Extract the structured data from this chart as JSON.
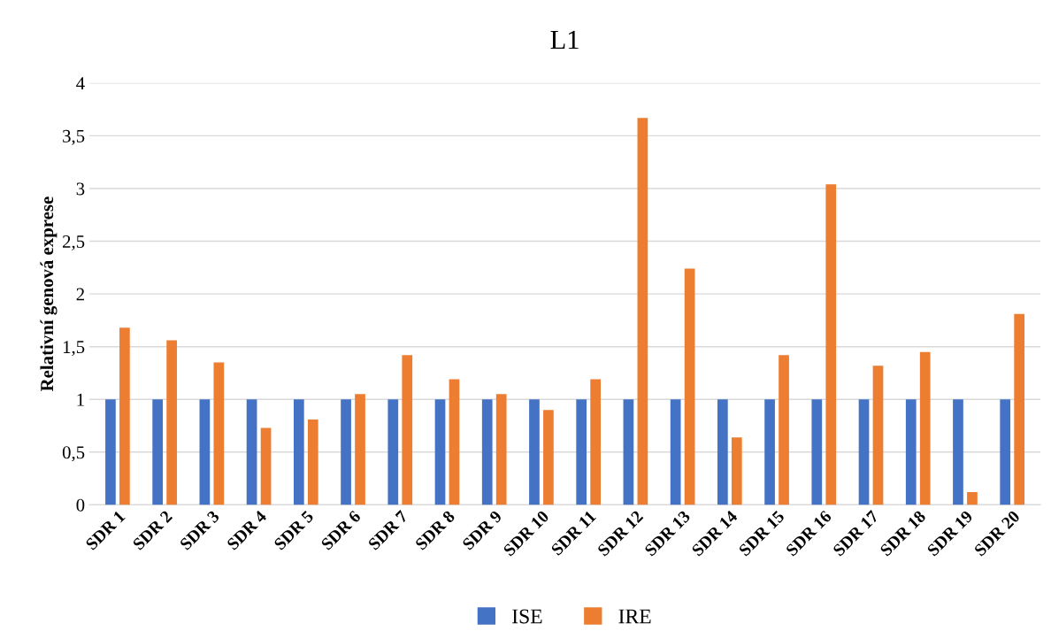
{
  "chart_data": {
    "type": "bar",
    "title": "L1",
    "ylabel": "Relativní genová exprese",
    "categories": [
      "SDR 1",
      "SDR 2",
      "SDR 3",
      "SDR 4",
      "SDR 5",
      "SDR 6",
      "SDR 7",
      "SDR 8",
      "SDR 9",
      "SDR 10",
      "SDR 11",
      "SDR 12",
      "SDR 13",
      "SDR 14",
      "SDR 15",
      "SDR 16",
      "SDR 17",
      "SDR 18",
      "SDR 19",
      "SDR 20"
    ],
    "series": [
      {
        "name": "ISE",
        "color": "#4472c4",
        "values": [
          1,
          1,
          1,
          1,
          1,
          1,
          1,
          1,
          1,
          1,
          1,
          1,
          1,
          1,
          1,
          1,
          1,
          1,
          1,
          1
        ]
      },
      {
        "name": "IRE",
        "color": "#ed7d31",
        "values": [
          1.68,
          1.56,
          1.35,
          0.73,
          0.81,
          1.05,
          1.42,
          1.19,
          1.05,
          0.9,
          1.19,
          3.67,
          2.24,
          0.64,
          1.42,
          3.04,
          1.32,
          1.45,
          0.12,
          1.81
        ]
      }
    ],
    "ylim": [
      0,
      4
    ],
    "yticks": [
      0,
      {
        "value": 0.5,
        "label": "0,5"
      },
      1,
      {
        "value": 1.5,
        "label": "1,5"
      },
      2,
      {
        "value": 2.5,
        "label": "2,5"
      },
      3,
      {
        "value": 3.5,
        "label": "3,5"
      },
      4
    ],
    "grid": "y",
    "legend": "bottom"
  }
}
